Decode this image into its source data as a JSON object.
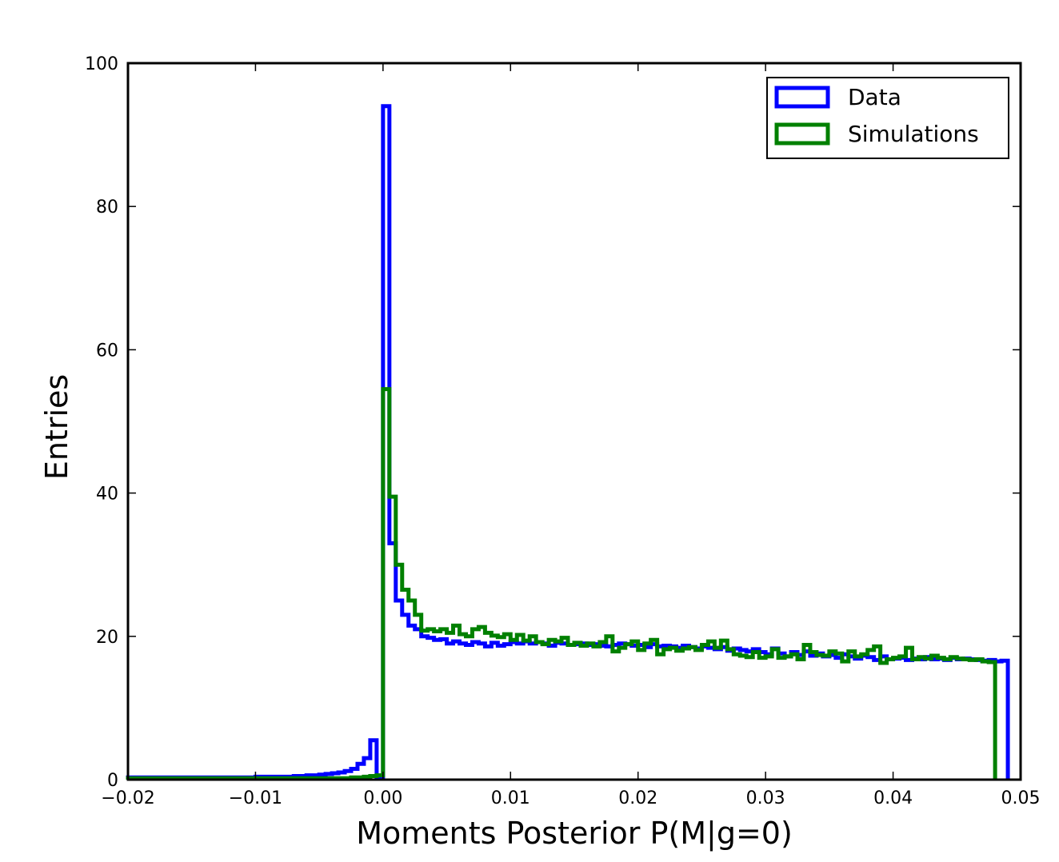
{
  "chart_data": {
    "type": "step-histogram",
    "xlabel": "Moments Posterior P(M|g=0)",
    "ylabel": "Entries",
    "xlim": [
      -0.02,
      0.05
    ],
    "ylim": [
      0,
      100
    ],
    "x_ticks": [
      -0.02,
      -0.01,
      0.0,
      0.01,
      0.02,
      0.03,
      0.04,
      0.05
    ],
    "x_tick_labels": [
      "−0.02",
      "−0.01",
      "0.00",
      "0.01",
      "0.02",
      "0.03",
      "0.04",
      "0.05"
    ],
    "y_ticks": [
      0,
      20,
      40,
      60,
      80,
      100
    ],
    "y_tick_labels": [
      "0",
      "20",
      "40",
      "60",
      "80",
      "100"
    ],
    "grid": false,
    "legend_position": "top-right",
    "bin_width": 0.0005,
    "series": [
      {
        "name": "Data",
        "color": "#0000ff",
        "bin_start": -0.02,
        "values": [
          0.3,
          0.3,
          0.3,
          0.3,
          0.3,
          0.3,
          0.3,
          0.3,
          0.3,
          0.3,
          0.3,
          0.3,
          0.3,
          0.3,
          0.3,
          0.3,
          0.3,
          0.3,
          0.3,
          0.3,
          0.4,
          0.4,
          0.4,
          0.4,
          0.4,
          0.4,
          0.5,
          0.5,
          0.6,
          0.6,
          0.7,
          0.8,
          0.9,
          1.0,
          1.2,
          1.5,
          2.2,
          3.0,
          5.5,
          0.3,
          94.0,
          33.0,
          25.0,
          23.0,
          21.5,
          21.0,
          20.0,
          19.8,
          19.5,
          19.6,
          19.0,
          19.3,
          19.0,
          18.8,
          19.2,
          19.0,
          18.6,
          19.1,
          18.7,
          18.9,
          19.2,
          19.0,
          19.3,
          19.0,
          19.2,
          19.0,
          18.7,
          19.1,
          19.0,
          18.8,
          18.9,
          19.0,
          18.8,
          18.9,
          18.7,
          18.6,
          18.8,
          19.0,
          18.9,
          18.7,
          18.8,
          18.5,
          18.9,
          18.6,
          18.7,
          18.6,
          18.4,
          18.7,
          18.5,
          18.3,
          18.6,
          18.4,
          18.2,
          18.5,
          18.0,
          18.3,
          18.1,
          17.9,
          18.2,
          17.8,
          17.5,
          18.3,
          17.6,
          17.2,
          17.8,
          17.4,
          17.9,
          17.3,
          17.6,
          17.2,
          17.4,
          17.0,
          17.5,
          17.2,
          16.9,
          17.3,
          17.1,
          16.7,
          17.2,
          16.8,
          16.9,
          17.0,
          16.7,
          16.9,
          16.8,
          17.1,
          16.8,
          16.9,
          16.7,
          17.0,
          16.8,
          16.9,
          16.8,
          16.7,
          16.6,
          16.7,
          16.5,
          16.6
        ]
      },
      {
        "name": "Simulations",
        "color": "#008000",
        "bin_start": -0.02,
        "values": [
          0.2,
          0.2,
          0.2,
          0.2,
          0.2,
          0.2,
          0.2,
          0.2,
          0.2,
          0.2,
          0.2,
          0.2,
          0.2,
          0.2,
          0.2,
          0.2,
          0.2,
          0.2,
          0.2,
          0.2,
          0.2,
          0.2,
          0.2,
          0.2,
          0.2,
          0.2,
          0.2,
          0.2,
          0.2,
          0.2,
          0.2,
          0.2,
          0.2,
          0.2,
          0.2,
          0.3,
          0.3,
          0.4,
          0.5,
          0.6,
          54.5,
          39.5,
          30.0,
          26.5,
          25.0,
          23.0,
          20.8,
          21.0,
          20.7,
          21.0,
          20.5,
          21.5,
          20.3,
          20.0,
          21.0,
          21.3,
          20.5,
          20.1,
          19.9,
          20.3,
          19.5,
          20.2,
          19.4,
          20.0,
          19.2,
          18.9,
          19.5,
          19.3,
          19.8,
          18.8,
          19.1,
          18.7,
          19.0,
          18.6,
          19.2,
          20.0,
          17.9,
          18.4,
          18.9,
          19.3,
          18.1,
          19.0,
          19.5,
          17.5,
          18.2,
          18.4,
          18.0,
          18.3,
          18.5,
          18.1,
          18.8,
          19.3,
          18.4,
          19.4,
          18.2,
          17.5,
          17.3,
          17.1,
          17.8,
          17.0,
          17.2,
          18.2,
          17.0,
          17.2,
          17.5,
          16.8,
          18.8,
          17.8,
          17.4,
          17.3,
          17.9,
          17.6,
          16.5,
          17.9,
          17.2,
          17.5,
          18.1,
          18.6,
          16.3,
          16.8,
          17.0,
          17.2,
          18.4,
          16.8,
          17.1,
          16.9,
          17.3,
          17.0,
          16.8,
          17.1,
          16.9,
          16.8,
          16.7,
          16.8,
          16.5,
          16.4
        ]
      }
    ]
  }
}
